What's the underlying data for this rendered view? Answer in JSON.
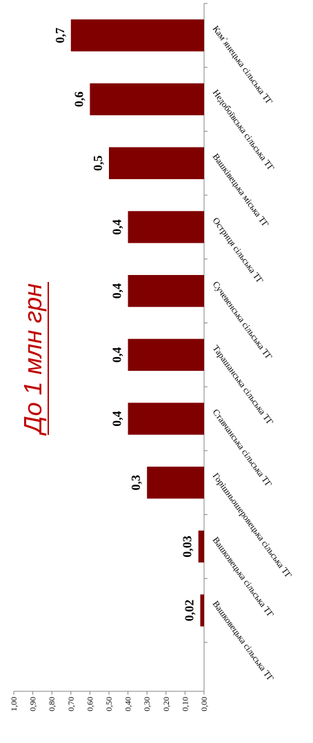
{
  "chart_data": {
    "type": "bar",
    "title": "До 1 млн грн",
    "title_color": "#c00000",
    "bar_color": "#800000",
    "categories": [
      "Вашковецька сільська ТГ",
      "Вашковецька сільська ТГ",
      "Горішньошеровецька сільська ТГ",
      "Ставчанська сільська ТГ",
      "Тарашанська сільська ТГ",
      "Сучевенська сільська ТГ",
      "Остриця сільська ТГ",
      "Вашківецька міська ТГ",
      "Недобоївська сільська ТГ",
      "Кам`янецька сільська ТГ"
    ],
    "values": [
      0.02,
      0.03,
      0.3,
      0.4,
      0.4,
      0.4,
      0.4,
      0.5,
      0.6,
      0.7
    ],
    "value_labels": [
      "0,02",
      "0,03",
      "0,3",
      "0,4",
      "0,4",
      "0,4",
      "0,4",
      "0,5",
      "0,6",
      "0,7"
    ],
    "axis_ticks": [
      "0,00",
      "0,10",
      "0,20",
      "0,30",
      "0,40",
      "0,50",
      "0,60",
      "0,70",
      "0,80",
      "0,90",
      "1,00"
    ],
    "ylim": [
      0,
      1.0
    ],
    "grid": false,
    "legend": "none"
  }
}
